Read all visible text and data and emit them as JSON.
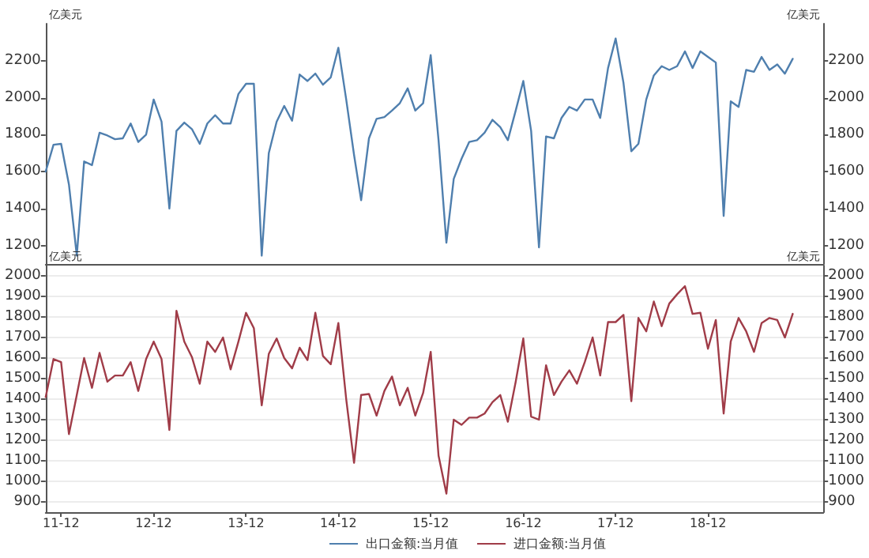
{
  "chart_data": [
    {
      "type": "line",
      "ylabel": "亿美元",
      "y2label": "亿美元",
      "x": [
        "2011-10",
        "2011-11",
        "2011-12",
        "2012-01",
        "2012-02",
        "2012-03",
        "2012-04",
        "2012-05",
        "2012-06",
        "2012-07",
        "2012-08",
        "2012-09",
        "2012-10",
        "2012-11",
        "2012-12",
        "2013-01",
        "2013-02",
        "2013-03",
        "2013-04",
        "2013-05",
        "2013-06",
        "2013-07",
        "2013-08",
        "2013-09",
        "2013-10",
        "2013-11",
        "2013-12",
        "2014-01",
        "2014-02",
        "2014-03",
        "2014-04",
        "2014-05",
        "2014-06",
        "2014-07",
        "2014-08",
        "2014-09",
        "2014-10",
        "2014-11",
        "2014-12",
        "2015-01",
        "2015-02",
        "2015-03",
        "2015-04",
        "2015-05",
        "2015-06",
        "2015-07",
        "2015-08",
        "2015-09",
        "2015-10",
        "2015-11",
        "2015-12",
        "2016-01",
        "2016-02",
        "2016-03",
        "2016-04",
        "2016-05",
        "2016-06",
        "2016-07",
        "2016-08",
        "2016-09",
        "2016-10",
        "2016-11",
        "2016-12",
        "2017-01",
        "2017-02",
        "2017-03",
        "2017-04",
        "2017-05",
        "2017-06",
        "2017-07",
        "2017-08",
        "2017-09",
        "2017-10",
        "2017-11",
        "2017-12",
        "2018-01",
        "2018-02",
        "2018-03",
        "2018-04",
        "2018-05",
        "2018-06",
        "2018-07",
        "2018-08",
        "2018-09",
        "2018-10",
        "2018-11",
        "2018-12",
        "2019-01",
        "2019-02",
        "2019-03",
        "2019-04",
        "2019-05",
        "2019-06",
        "2019-07",
        "2019-08",
        "2019-09",
        "2019-10",
        "2019-11"
      ],
      "series": [
        {
          "name": "出口金额:当月值",
          "color": "#4f7fae",
          "values": [
            1600,
            1745,
            1750,
            1530,
            1145,
            1655,
            1635,
            1810,
            1795,
            1775,
            1780,
            1860,
            1760,
            1800,
            1990,
            1870,
            1400,
            1820,
            1865,
            1830,
            1750,
            1860,
            1905,
            1860,
            1860,
            2020,
            2075,
            2075,
            1145,
            1700,
            1870,
            1955,
            1875,
            2125,
            2090,
            2130,
            2070,
            2110,
            2270,
            1990,
            1690,
            1445,
            1780,
            1885,
            1895,
            1930,
            1970,
            2050,
            1930,
            1970,
            2230,
            1770,
            1215,
            1560,
            1670,
            1760,
            1770,
            1810,
            1880,
            1840,
            1770,
            1930,
            2090,
            1820,
            1190,
            1790,
            1780,
            1890,
            1950,
            1930,
            1990,
            1990,
            1890,
            2160,
            2320,
            2080,
            1710,
            1750,
            1990,
            2120,
            2170,
            2150,
            2170,
            2250,
            2160,
            2250,
            2220,
            2190,
            1360,
            1980,
            1950,
            2150,
            2140,
            2220,
            2150,
            2180,
            2130,
            2210
          ]
        }
      ],
      "xlim": [
        "2011-10",
        "2020-03"
      ],
      "ylim": [
        1100,
        2400
      ],
      "yticks": [
        1200,
        1400,
        1600,
        1800,
        2000,
        2200
      ],
      "y2lim": [
        1100,
        2400
      ],
      "y2ticks": [
        1200,
        1400,
        1600,
        1800,
        2000,
        2200
      ],
      "tick_labels": "y",
      "marker": "none",
      "legend": "bottom"
    },
    {
      "type": "line",
      "ylabel": "亿美元",
      "y2label": "亿美元",
      "x": [
        "2011-10",
        "2011-11",
        "2011-12",
        "2012-01",
        "2012-02",
        "2012-03",
        "2012-04",
        "2012-05",
        "2012-06",
        "2012-07",
        "2012-08",
        "2012-09",
        "2012-10",
        "2012-11",
        "2012-12",
        "2013-01",
        "2013-02",
        "2013-03",
        "2013-04",
        "2013-05",
        "2013-06",
        "2013-07",
        "2013-08",
        "2013-09",
        "2013-10",
        "2013-11",
        "2013-12",
        "2014-01",
        "2014-02",
        "2014-03",
        "2014-04",
        "2014-05",
        "2014-06",
        "2014-07",
        "2014-08",
        "2014-09",
        "2014-10",
        "2014-11",
        "2014-12",
        "2015-01",
        "2015-02",
        "2015-03",
        "2015-04",
        "2015-05",
        "2015-06",
        "2015-07",
        "2015-08",
        "2015-09",
        "2015-10",
        "2015-11",
        "2015-12",
        "2016-01",
        "2016-02",
        "2016-03",
        "2016-04",
        "2016-05",
        "2016-06",
        "2016-07",
        "2016-08",
        "2016-09",
        "2016-10",
        "2016-11",
        "2016-12",
        "2017-01",
        "2017-02",
        "2017-03",
        "2017-04",
        "2017-05",
        "2017-06",
        "2017-07",
        "2017-08",
        "2017-09",
        "2017-10",
        "2017-11",
        "2017-12",
        "2018-01",
        "2018-02",
        "2018-03",
        "2018-04",
        "2018-05",
        "2018-06",
        "2018-07",
        "2018-08",
        "2018-09",
        "2018-10",
        "2018-11",
        "2018-12",
        "2019-01",
        "2019-02",
        "2019-03",
        "2019-04",
        "2019-05",
        "2019-06",
        "2019-07",
        "2019-08",
        "2019-09",
        "2019-10",
        "2019-11"
      ],
      "series": [
        {
          "name": "进口金额:当月值",
          "color": "#a03c48",
          "values": [
            1410,
            1595,
            1580,
            1230,
            1420,
            1600,
            1455,
            1625,
            1485,
            1515,
            1515,
            1580,
            1440,
            1595,
            1680,
            1595,
            1250,
            1830,
            1680,
            1605,
            1475,
            1680,
            1630,
            1700,
            1545,
            1680,
            1820,
            1745,
            1370,
            1620,
            1695,
            1600,
            1550,
            1650,
            1590,
            1820,
            1610,
            1570,
            1770,
            1400,
            1090,
            1420,
            1425,
            1320,
            1440,
            1510,
            1370,
            1455,
            1320,
            1430,
            1630,
            1125,
            940,
            1300,
            1275,
            1310,
            1310,
            1330,
            1385,
            1420,
            1290,
            1485,
            1695,
            1315,
            1300,
            1565,
            1420,
            1485,
            1540,
            1475,
            1580,
            1700,
            1515,
            1775,
            1775,
            1810,
            1390,
            1795,
            1730,
            1875,
            1755,
            1865,
            1910,
            1950,
            1815,
            1820,
            1645,
            1785,
            1330,
            1680,
            1795,
            1730,
            1630,
            1770,
            1795,
            1785,
            1700,
            1815
          ]
        }
      ],
      "xlim": [
        "2011-10",
        "2020-03"
      ],
      "xticks": [
        {
          "value": "2011-12",
          "label": "11-12"
        },
        {
          "value": "2012-12",
          "label": "12-12"
        },
        {
          "value": "2013-12",
          "label": "13-12"
        },
        {
          "value": "2014-12",
          "label": "14-12"
        },
        {
          "value": "2015-12",
          "label": "15-12"
        },
        {
          "value": "2016-12",
          "label": "16-12"
        },
        {
          "value": "2017-12",
          "label": "17-12"
        },
        {
          "value": "2018-12",
          "label": "18-12"
        }
      ],
      "ylim": [
        850,
        2050
      ],
      "yticks": [
        900,
        1000,
        1100,
        1200,
        1300,
        1400,
        1500,
        1600,
        1700,
        1800,
        1900,
        2000
      ],
      "y2lim": [
        850,
        2050
      ],
      "y2ticks": [
        900,
        1000,
        1100,
        1200,
        1300,
        1400,
        1500,
        1600,
        1700,
        1800,
        1900,
        2000
      ],
      "grid": "y",
      "marker": "none",
      "legend": "bottom"
    }
  ]
}
